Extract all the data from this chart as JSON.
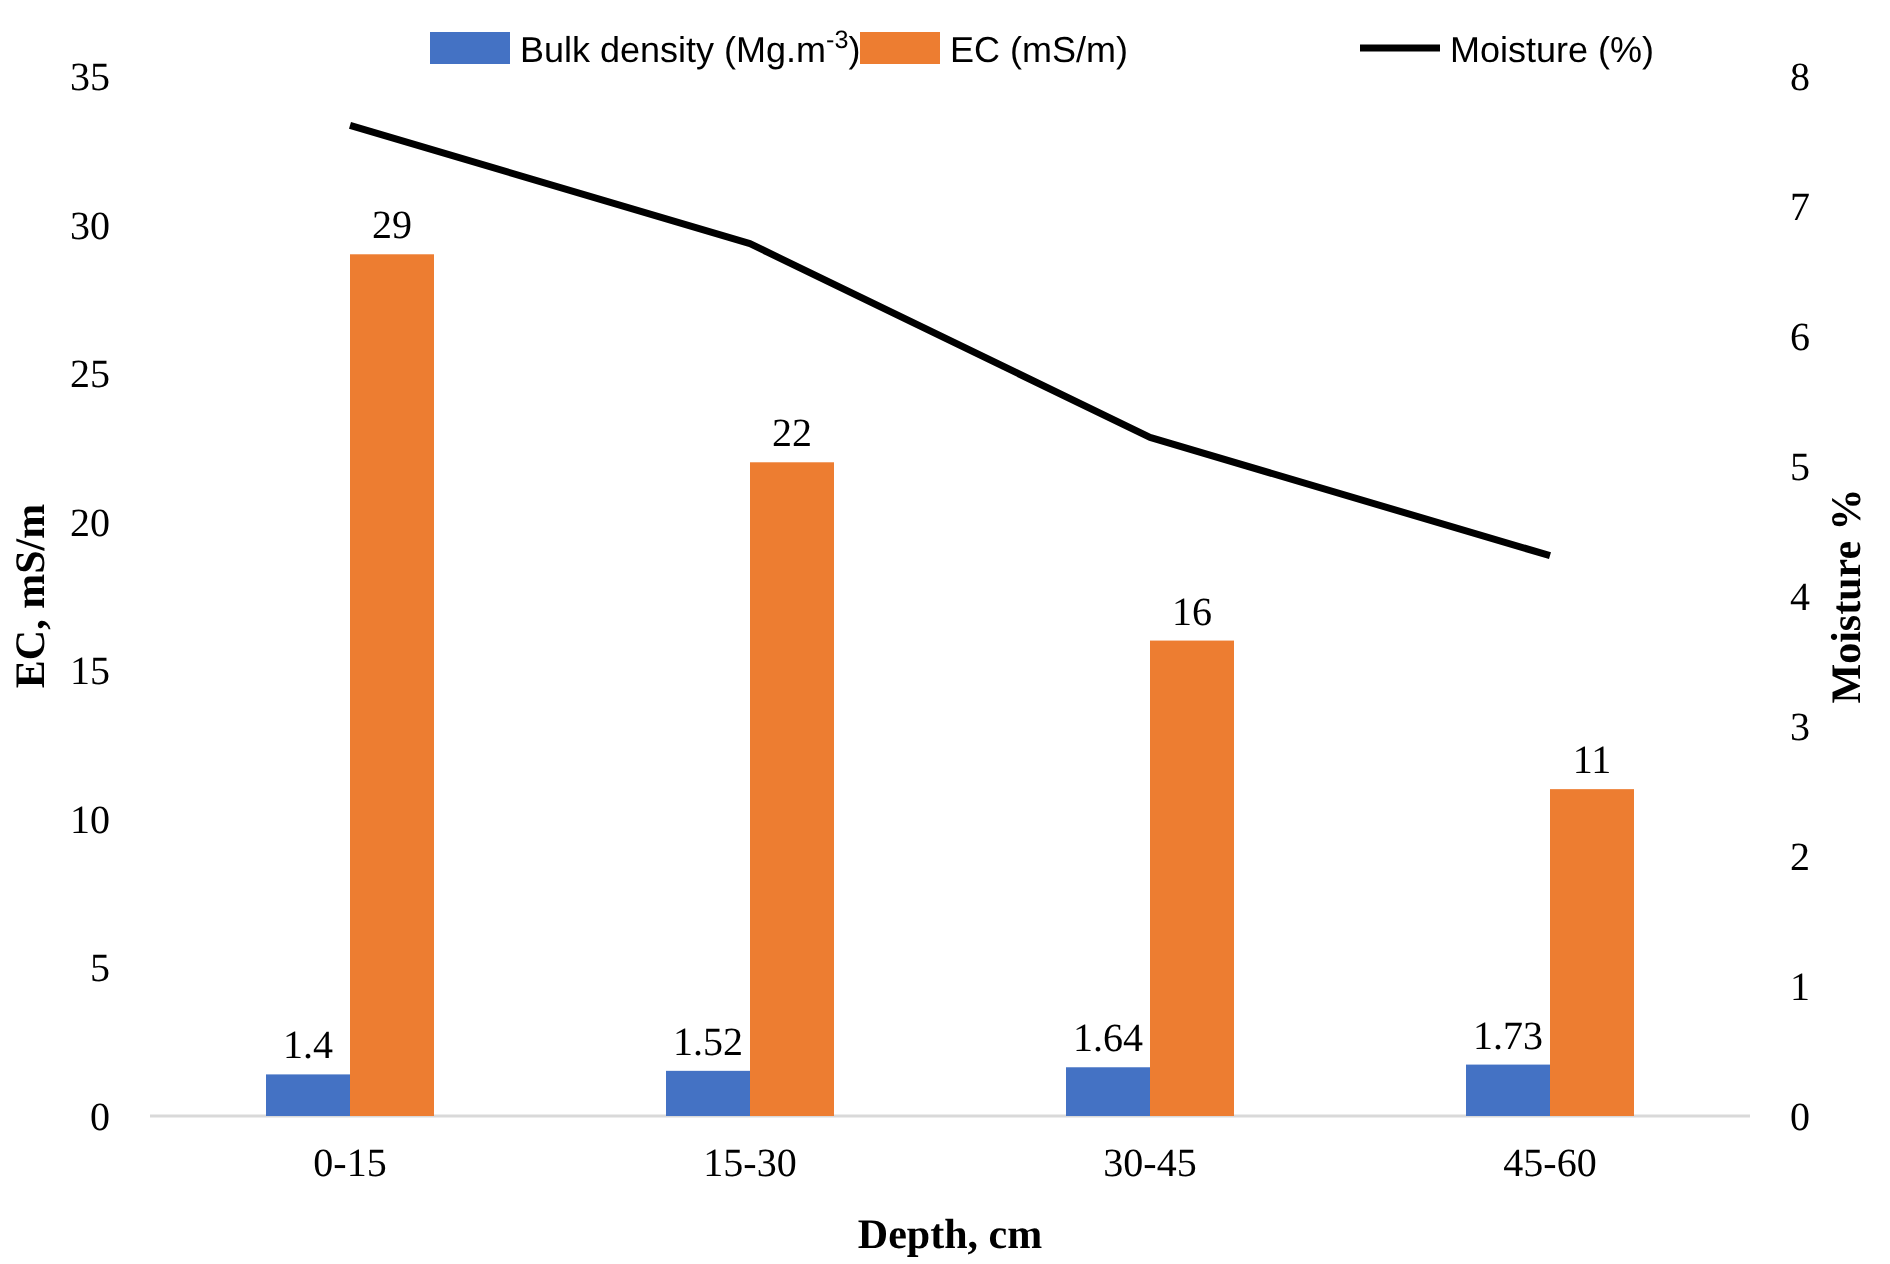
{
  "chart_data": {
    "type": "bar",
    "xlabel": "Depth, cm",
    "ylabel": "EC, mS/m",
    "y2label": "Moisture %",
    "categories": [
      "0-15",
      "15-30",
      "30-45",
      "45-60"
    ],
    "series": [
      {
        "name": "Bulk density (Mg.m$^{-3}$)",
        "color": "#4472c4",
        "values": [
          1.4,
          1.52,
          1.64,
          1.73
        ],
        "value_labels": [
          "1.4",
          "1.52",
          "1.64",
          "1.73"
        ]
      },
      {
        "name": "EC (mS/m)",
        "color": "#ed7d31",
        "values": [
          29,
          22,
          16,
          11
        ],
        "value_labels": [
          "29",
          "22",
          "16",
          "11"
        ]
      },
      {
        "name": "Moisture (%)",
        "type": "line",
        "axis": "y2",
        "color": "#000000",
        "values": [
          7.62,
          6.71,
          5.22,
          4.31
        ],
        "marker": "none"
      }
    ],
    "ylim": [
      0,
      35
    ],
    "yticks": [
      0,
      5,
      10,
      15,
      20,
      25,
      30,
      35
    ],
    "y2lim": [
      0,
      8
    ],
    "y2ticks": [
      0,
      1,
      2,
      3,
      4,
      5,
      6,
      7,
      8
    ],
    "legend": "top",
    "grid": false
  }
}
